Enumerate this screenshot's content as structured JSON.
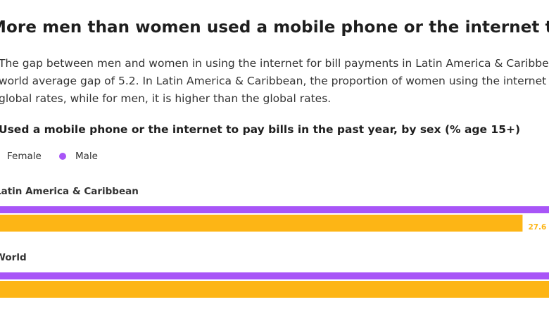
{
  "title": "More men than women used a mobile phone or the internet to pay bills",
  "description": [
    "The gap between men and women in using the internet for bill payments in Latin America & Caribbean",
    "world average gap of 5.2. In Latin America & Caribbean, the proportion of women using the internet",
    "global rates, while for men, it is higher than the global rates."
  ],
  "chart_data": {
    "type": "bar",
    "orientation": "horizontal",
    "title": "Used a mobile phone or the internet to pay bills in the past year, by sex (% age 15+)",
    "categories": [
      "Latin America & Caribbean",
      "World"
    ],
    "series": [
      {
        "name": "Male",
        "color": "#a855f7",
        "values": [
          null,
          null
        ]
      },
      {
        "name": "Female",
        "color": "#fdb515",
        "values": [
          27.6,
          null
        ]
      }
    ],
    "data_labels": [
      "27.6",
      ""
    ],
    "xlabel": "",
    "ylabel": "",
    "legend_position": "top-left"
  }
}
